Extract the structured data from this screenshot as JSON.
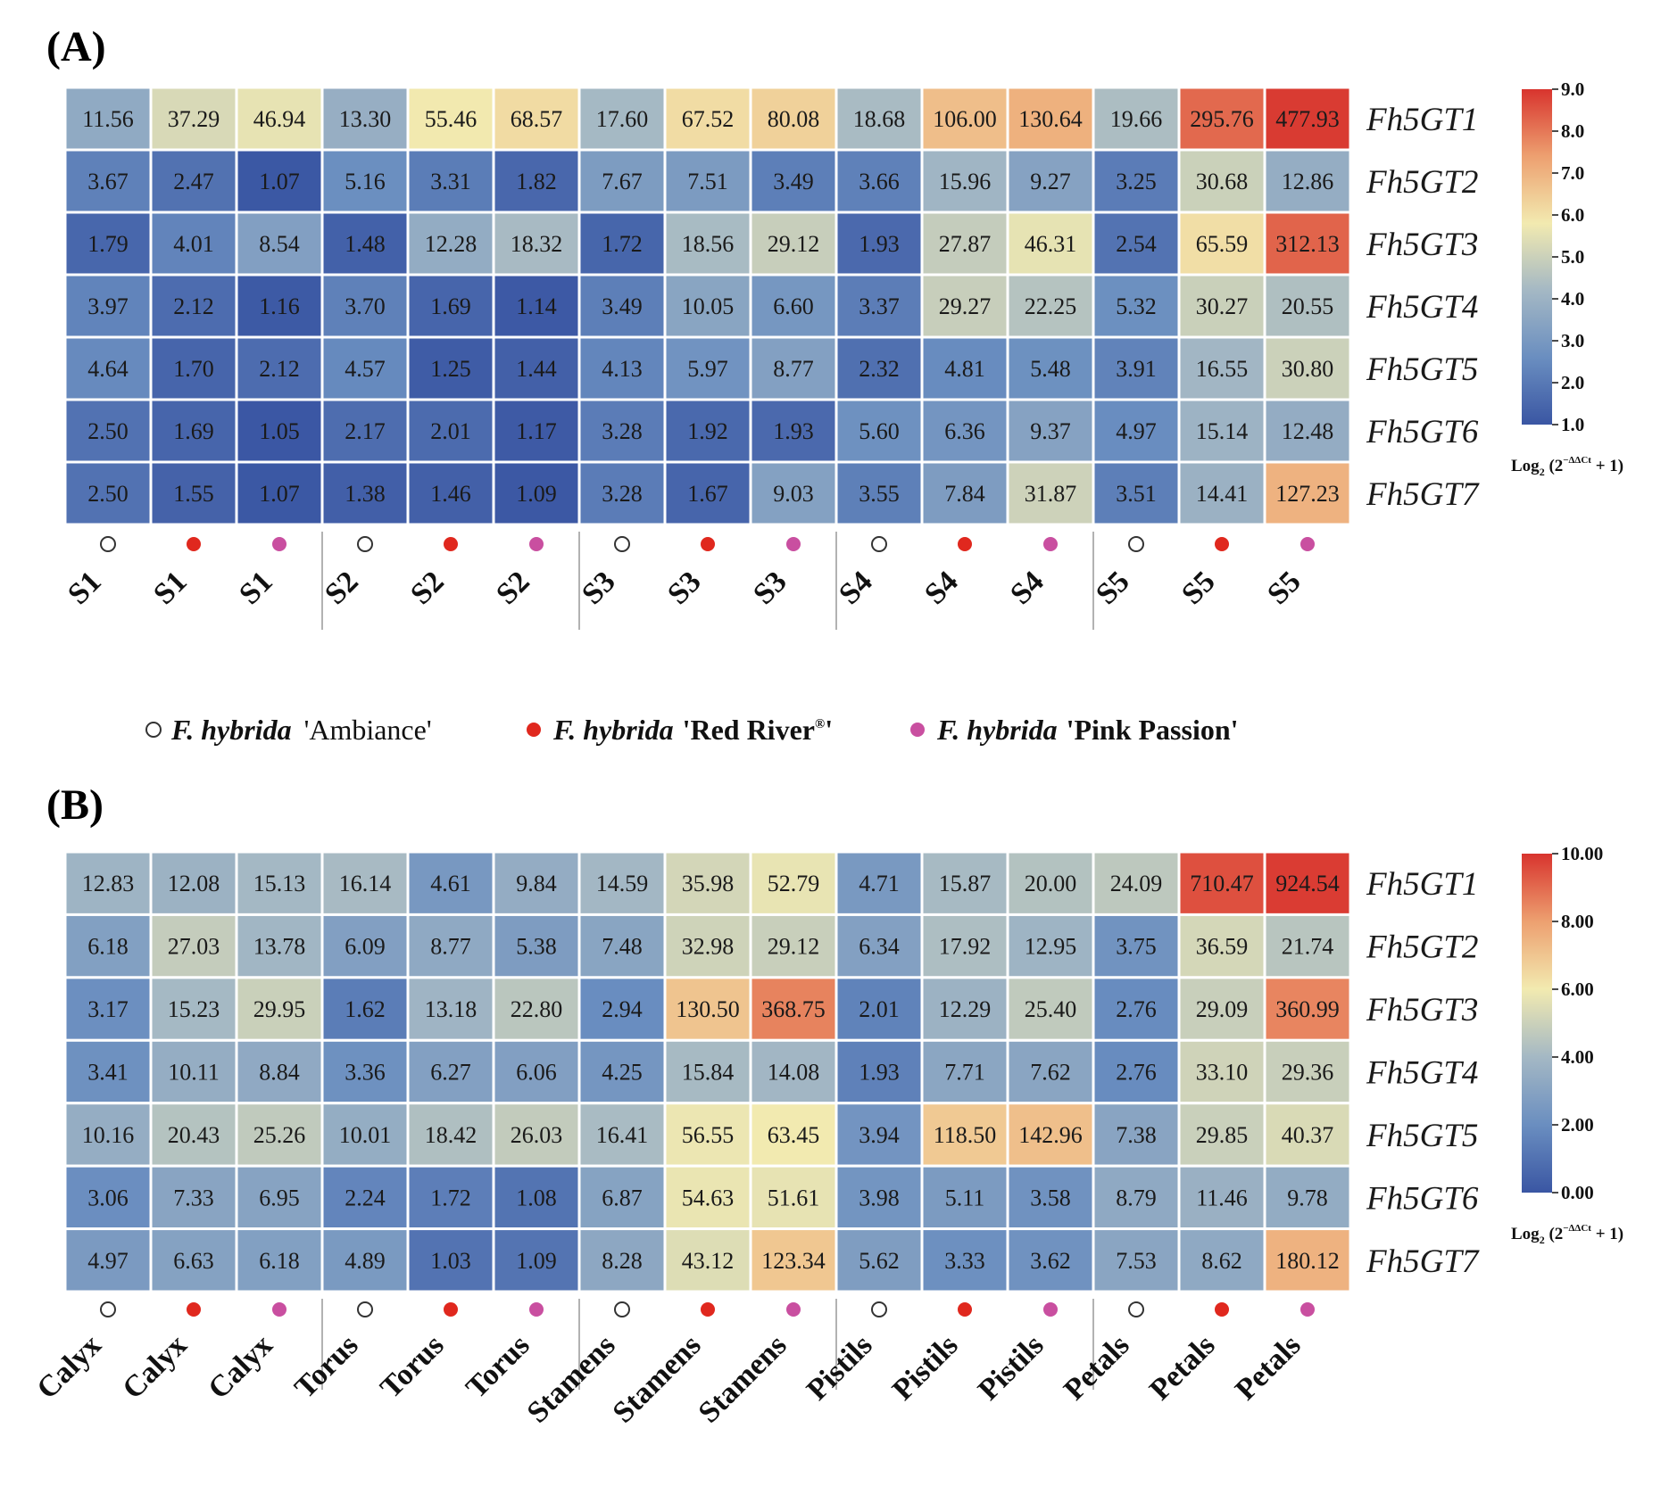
{
  "colors": {
    "scale": [
      "#3a56a3",
      "#6a8ec0",
      "#a4b8c4",
      "#f2eab0",
      "#eda070",
      "#d8342e"
    ],
    "ambiance": "#ffffff",
    "red_river": "#e0281e",
    "pink_passion": "#c94fa0",
    "border": "#ffffff"
  },
  "legend": {
    "ambiance_species": "F. hybrida",
    "ambiance_cultivar": "'Ambiance'",
    "red_species": "F. hybrida",
    "red_cultivar": "'Red River",
    "red_registered": "®",
    "red_close": "'",
    "pink_species": "F. hybrida",
    "pink_cultivar": "'Pink Passion'"
  },
  "chart_data": [
    {
      "panel": "(A)",
      "type": "heatmap",
      "genes": [
        "Fh5GT1",
        "Fh5GT2",
        "Fh5GT3",
        "Fh5GT4",
        "Fh5GT5",
        "Fh5GT6",
        "Fh5GT7"
      ],
      "columns": [
        "S1",
        "S1",
        "S1",
        "S2",
        "S2",
        "S2",
        "S3",
        "S3",
        "S3",
        "S4",
        "S4",
        "S4",
        "S5",
        "S5",
        "S5"
      ],
      "cultivars": [
        "ambiance",
        "red_river",
        "pink_passion",
        "ambiance",
        "red_river",
        "pink_passion",
        "ambiance",
        "red_river",
        "pink_passion",
        "ambiance",
        "red_river",
        "pink_passion",
        "ambiance",
        "red_river",
        "pink_passion"
      ],
      "cells": [
        [
          "11.56",
          "37.29",
          "46.94",
          "13.30",
          "55.46",
          "68.57",
          "17.60",
          "67.52",
          "80.08",
          "18.68",
          "106.00",
          "130.64",
          "19.66",
          "295.76",
          "477.93"
        ],
        [
          "3.67",
          "2.47",
          "1.07",
          "5.16",
          "3.31",
          "1.82",
          "7.67",
          "7.51",
          "3.49",
          "3.66",
          "15.96",
          "9.27",
          "3.25",
          "30.68",
          "12.86"
        ],
        [
          "1.79",
          "4.01",
          "8.54",
          "1.48",
          "12.28",
          "18.32",
          "1.72",
          "18.56",
          "29.12",
          "1.93",
          "27.87",
          "46.31",
          "2.54",
          "65.59",
          "312.13"
        ],
        [
          "3.97",
          "2.12",
          "1.16",
          "3.70",
          "1.69",
          "1.14",
          "3.49",
          "10.05",
          "6.60",
          "3.37",
          "29.27",
          "22.25",
          "5.32",
          "30.27",
          "20.55"
        ],
        [
          "4.64",
          "1.70",
          "2.12",
          "4.57",
          "1.25",
          "1.44",
          "4.13",
          "5.97",
          "8.77",
          "2.32",
          "4.81",
          "5.48",
          "3.91",
          "16.55",
          "30.80"
        ],
        [
          "2.50",
          "1.69",
          "1.05",
          "2.17",
          "2.01",
          "1.17",
          "3.28",
          "1.92",
          "1.93",
          "5.60",
          "6.36",
          "9.37",
          "4.97",
          "15.14",
          "12.48"
        ],
        [
          "2.50",
          "1.55",
          "1.07",
          "1.38",
          "1.46",
          "1.09",
          "3.28",
          "1.67",
          "9.03",
          "3.55",
          "7.84",
          "31.87",
          "3.51",
          "14.41",
          "127.23"
        ]
      ],
      "colorbar": {
        "min": 1.0,
        "max": 9.0,
        "ticks": [
          "9.0",
          "8.0",
          "7.0",
          "6.0",
          "5.0",
          "4.0",
          "3.0",
          "2.0",
          "1.0"
        ],
        "label_prefix": "Log",
        "label_sub": "2",
        "label_open": " (2",
        "label_sup": "−ΔΔCt",
        "label_close": " + 1)"
      }
    },
    {
      "panel": "(B)",
      "type": "heatmap",
      "genes": [
        "Fh5GT1",
        "Fh5GT2",
        "Fh5GT3",
        "Fh5GT4",
        "Fh5GT5",
        "Fh5GT6",
        "Fh5GT7"
      ],
      "columns": [
        "Calyx",
        "Calyx",
        "Calyx",
        "Torus",
        "Torus",
        "Torus",
        "Stamens",
        "Stamens",
        "Stamens",
        "Pistils",
        "Pistils",
        "Pistils",
        "Petals",
        "Petals",
        "Petals"
      ],
      "cultivars": [
        "ambiance",
        "red_river",
        "pink_passion",
        "ambiance",
        "red_river",
        "pink_passion",
        "ambiance",
        "red_river",
        "pink_passion",
        "ambiance",
        "red_river",
        "pink_passion",
        "ambiance",
        "red_river",
        "pink_passion"
      ],
      "cells": [
        [
          "12.83",
          "12.08",
          "15.13",
          "16.14",
          "4.61",
          "9.84",
          "14.59",
          "35.98",
          "52.79",
          "4.71",
          "15.87",
          "20.00",
          "24.09",
          "710.47",
          "924.54"
        ],
        [
          "6.18",
          "27.03",
          "13.78",
          "6.09",
          "8.77",
          "5.38",
          "7.48",
          "32.98",
          "29.12",
          "6.34",
          "17.92",
          "12.95",
          "3.75",
          "36.59",
          "21.74"
        ],
        [
          "3.17",
          "15.23",
          "29.95",
          "1.62",
          "13.18",
          "22.80",
          "2.94",
          "130.50",
          "368.75",
          "2.01",
          "12.29",
          "25.40",
          "2.76",
          "29.09",
          "360.99"
        ],
        [
          "3.41",
          "10.11",
          "8.84",
          "3.36",
          "6.27",
          "6.06",
          "4.25",
          "15.84",
          "14.08",
          "1.93",
          "7.71",
          "7.62",
          "2.76",
          "33.10",
          "29.36"
        ],
        [
          "10.16",
          "20.43",
          "25.26",
          "10.01",
          "18.42",
          "26.03",
          "16.41",
          "56.55",
          "63.45",
          "3.94",
          "118.50",
          "142.96",
          "7.38",
          "29.85",
          "40.37"
        ],
        [
          "3.06",
          "7.33",
          "6.95",
          "2.24",
          "1.72",
          "1.08",
          "6.87",
          "54.63",
          "51.61",
          "3.98",
          "5.11",
          "3.58",
          "8.79",
          "11.46",
          "9.78"
        ],
        [
          "4.97",
          "6.63",
          "6.18",
          "4.89",
          "1.03",
          "1.09",
          "8.28",
          "43.12",
          "123.34",
          "5.62",
          "3.33",
          "3.62",
          "7.53",
          "8.62",
          "180.12"
        ]
      ],
      "colorbar": {
        "min": 0.0,
        "max": 10.0,
        "ticks": [
          "10.00",
          "8.00",
          "6.00",
          "4.00",
          "2.00",
          "0.00"
        ],
        "label_prefix": "Log",
        "label_sub": "2",
        "label_open": " (2",
        "label_sup": "−ΔΔCt",
        "label_close": " + 1)"
      }
    }
  ]
}
